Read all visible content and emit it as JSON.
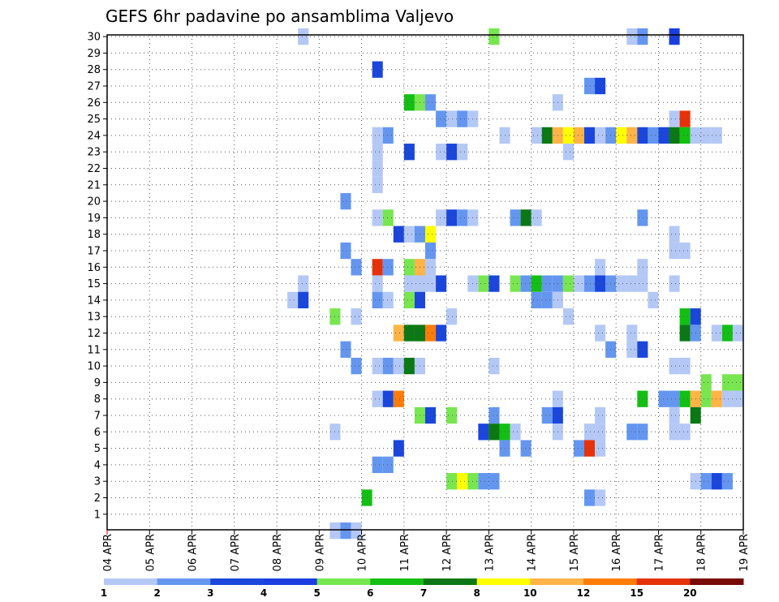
{
  "chart_data": {
    "type": "heatmap",
    "title": "GEFS 6hr padavine po ansamblima Valjevo",
    "xlabel": "",
    "ylabel": "",
    "grid": true,
    "x_tick_labels": [
      "04 APR",
      "05 APR",
      "06 APR",
      "07 APR",
      "08 APR",
      "09 APR",
      "10 APR",
      "11 APR",
      "12 APR",
      "13 APR",
      "14 APR",
      "15 APR",
      "16 APR",
      "17 APR",
      "18 APR",
      "19 APR"
    ],
    "time_step_hours": 6,
    "y_tick_labels": [
      "1",
      "2",
      "3",
      "4",
      "5",
      "6",
      "7",
      "8",
      "9",
      "10",
      "11",
      "12",
      "13",
      "14",
      "15",
      "16",
      "17",
      "18",
      "19",
      "20",
      "21",
      "22",
      "23",
      "24",
      "25",
      "26",
      "27",
      "28",
      "29",
      "30"
    ],
    "ylim": [
      0.5,
      30.5
    ],
    "colorbar": {
      "labels": [
        "1",
        "2",
        "3",
        "4",
        "5",
        "6",
        "7",
        "8",
        "10",
        "12",
        "15",
        "20"
      ],
      "colors": [
        "#b4c8f6",
        "#6496f0",
        "#1a46dc",
        "#1a3ee0",
        "#78e650",
        "#14bf14",
        "#0a7814",
        "#ffff00",
        "#ffb446",
        "#ff7c0a",
        "#e6320a",
        "#780a0a"
      ]
    },
    "note_cells": "each cell: [member, 6h step index from 04 APR 00Z, color class 1-12]",
    "cells": [
      [
        30,
        18,
        1
      ],
      [
        30,
        36,
        5
      ],
      [
        30,
        49,
        1
      ],
      [
        30,
        50,
        2
      ],
      [
        30,
        53,
        4
      ],
      [
        28,
        25,
        3
      ],
      [
        27,
        45,
        2
      ],
      [
        27,
        46,
        3
      ],
      [
        26,
        28,
        6
      ],
      [
        26,
        29,
        5
      ],
      [
        26,
        30,
        2
      ],
      [
        26,
        42,
        1
      ],
      [
        25,
        31,
        2
      ],
      [
        25,
        32,
        1
      ],
      [
        25,
        33,
        2
      ],
      [
        25,
        34,
        1
      ],
      [
        25,
        53,
        1
      ],
      [
        25,
        54,
        11
      ],
      [
        24,
        25,
        1
      ],
      [
        24,
        26,
        2
      ],
      [
        24,
        37,
        1
      ],
      [
        24,
        40,
        1
      ],
      [
        24,
        41,
        7
      ],
      [
        24,
        42,
        9
      ],
      [
        24,
        43,
        8
      ],
      [
        24,
        44,
        9
      ],
      [
        24,
        45,
        3
      ],
      [
        24,
        46,
        1
      ],
      [
        24,
        47,
        2
      ],
      [
        24,
        48,
        8
      ],
      [
        24,
        49,
        9
      ],
      [
        24,
        50,
        3
      ],
      [
        24,
        51,
        2
      ],
      [
        24,
        52,
        3
      ],
      [
        24,
        53,
        7
      ],
      [
        24,
        54,
        6
      ],
      [
        24,
        55,
        1
      ],
      [
        24,
        56,
        1
      ],
      [
        24,
        57,
        1
      ],
      [
        23,
        25,
        1
      ],
      [
        23,
        28,
        3
      ],
      [
        23,
        31,
        1
      ],
      [
        23,
        32,
        3
      ],
      [
        23,
        33,
        1
      ],
      [
        23,
        43,
        1
      ],
      [
        22,
        25,
        1
      ],
      [
        21,
        25,
        1
      ],
      [
        20,
        22,
        2
      ],
      [
        19,
        25,
        1
      ],
      [
        19,
        26,
        5
      ],
      [
        19,
        31,
        1
      ],
      [
        19,
        32,
        3
      ],
      [
        19,
        33,
        2
      ],
      [
        19,
        34,
        1
      ],
      [
        19,
        38,
        2
      ],
      [
        19,
        39,
        7
      ],
      [
        19,
        40,
        1
      ],
      [
        19,
        50,
        2
      ],
      [
        18,
        27,
        3
      ],
      [
        18,
        28,
        1
      ],
      [
        18,
        29,
        2
      ],
      [
        18,
        30,
        8
      ],
      [
        18,
        53,
        1
      ],
      [
        17,
        22,
        2
      ],
      [
        17,
        30,
        2
      ],
      [
        17,
        53,
        1
      ],
      [
        17,
        54,
        1
      ],
      [
        16,
        23,
        2
      ],
      [
        16,
        25,
        11
      ],
      [
        16,
        26,
        2
      ],
      [
        16,
        28,
        5
      ],
      [
        16,
        29,
        9
      ],
      [
        16,
        30,
        1
      ],
      [
        16,
        46,
        1
      ],
      [
        16,
        50,
        1
      ],
      [
        15,
        18,
        1
      ],
      [
        15,
        25,
        1
      ],
      [
        15,
        28,
        1
      ],
      [
        15,
        29,
        1
      ],
      [
        15,
        30,
        1
      ],
      [
        15,
        31,
        3
      ],
      [
        15,
        34,
        1
      ],
      [
        15,
        35,
        5
      ],
      [
        15,
        36,
        3
      ],
      [
        15,
        38,
        5
      ],
      [
        15,
        39,
        2
      ],
      [
        15,
        40,
        6
      ],
      [
        15,
        41,
        2
      ],
      [
        15,
        42,
        2
      ],
      [
        15,
        43,
        5
      ],
      [
        15,
        44,
        1
      ],
      [
        15,
        45,
        2
      ],
      [
        15,
        46,
        3
      ],
      [
        15,
        47,
        2
      ],
      [
        15,
        48,
        1
      ],
      [
        15,
        49,
        1
      ],
      [
        15,
        50,
        1
      ],
      [
        15,
        53,
        1
      ],
      [
        14,
        17,
        1
      ],
      [
        14,
        18,
        3
      ],
      [
        14,
        25,
        2
      ],
      [
        14,
        26,
        1
      ],
      [
        14,
        28,
        5
      ],
      [
        14,
        29,
        3
      ],
      [
        14,
        40,
        2
      ],
      [
        14,
        41,
        2
      ],
      [
        14,
        42,
        1
      ],
      [
        14,
        51,
        1
      ],
      [
        13,
        21,
        5
      ],
      [
        13,
        23,
        1
      ],
      [
        13,
        32,
        1
      ],
      [
        13,
        43,
        1
      ],
      [
        13,
        54,
        6
      ],
      [
        13,
        55,
        3
      ],
      [
        12,
        27,
        9
      ],
      [
        12,
        28,
        7
      ],
      [
        12,
        29,
        7
      ],
      [
        12,
        30,
        10
      ],
      [
        12,
        31,
        3
      ],
      [
        12,
        46,
        1
      ],
      [
        12,
        49,
        1
      ],
      [
        12,
        54,
        7
      ],
      [
        12,
        55,
        2
      ],
      [
        12,
        57,
        1
      ],
      [
        12,
        58,
        6
      ],
      [
        12,
        59,
        1
      ],
      [
        11,
        22,
        2
      ],
      [
        11,
        47,
        2
      ],
      [
        11,
        49,
        1
      ],
      [
        11,
        50,
        3
      ],
      [
        10,
        23,
        2
      ],
      [
        10,
        25,
        1
      ],
      [
        10,
        26,
        2
      ],
      [
        10,
        27,
        1
      ],
      [
        10,
        28,
        7
      ],
      [
        10,
        29,
        1
      ],
      [
        10,
        36,
        1
      ],
      [
        10,
        53,
        1
      ],
      [
        10,
        54,
        1
      ],
      [
        9,
        56,
        5
      ],
      [
        9,
        58,
        5
      ],
      [
        9,
        59,
        5
      ],
      [
        8,
        25,
        1
      ],
      [
        8,
        26,
        3
      ],
      [
        8,
        27,
        10
      ],
      [
        8,
        42,
        1
      ],
      [
        8,
        50,
        6
      ],
      [
        8,
        52,
        2
      ],
      [
        8,
        53,
        2
      ],
      [
        8,
        54,
        6
      ],
      [
        8,
        55,
        9
      ],
      [
        8,
        56,
        5
      ],
      [
        8,
        57,
        9
      ],
      [
        8,
        58,
        1
      ],
      [
        8,
        59,
        1
      ],
      [
        7,
        29,
        5
      ],
      [
        7,
        30,
        3
      ],
      [
        7,
        32,
        5
      ],
      [
        7,
        36,
        2
      ],
      [
        7,
        41,
        2
      ],
      [
        7,
        42,
        3
      ],
      [
        7,
        46,
        1
      ],
      [
        7,
        53,
        1
      ],
      [
        7,
        55,
        7
      ],
      [
        6,
        21,
        1
      ],
      [
        6,
        35,
        3
      ],
      [
        6,
        36,
        7
      ],
      [
        6,
        37,
        6
      ],
      [
        6,
        38,
        1
      ],
      [
        6,
        42,
        1
      ],
      [
        6,
        45,
        1
      ],
      [
        6,
        46,
        1
      ],
      [
        6,
        49,
        2
      ],
      [
        6,
        50,
        2
      ],
      [
        6,
        53,
        1
      ],
      [
        6,
        54,
        1
      ],
      [
        5,
        27,
        3
      ],
      [
        5,
        37,
        2
      ],
      [
        5,
        39,
        2
      ],
      [
        5,
        44,
        2
      ],
      [
        5,
        45,
        11
      ],
      [
        5,
        46,
        1
      ],
      [
        4,
        25,
        2
      ],
      [
        4,
        26,
        2
      ],
      [
        3,
        32,
        5
      ],
      [
        3,
        33,
        8
      ],
      [
        3,
        34,
        5
      ],
      [
        3,
        35,
        2
      ],
      [
        3,
        36,
        2
      ],
      [
        3,
        55,
        1
      ],
      [
        3,
        56,
        2
      ],
      [
        3,
        57,
        3
      ],
      [
        3,
        58,
        2
      ],
      [
        2,
        24,
        6
      ],
      [
        2,
        45,
        2
      ],
      [
        2,
        46,
        1
      ],
      [
        0,
        21,
        1
      ],
      [
        0,
        22,
        2
      ],
      [
        0,
        23,
        1
      ]
    ]
  }
}
